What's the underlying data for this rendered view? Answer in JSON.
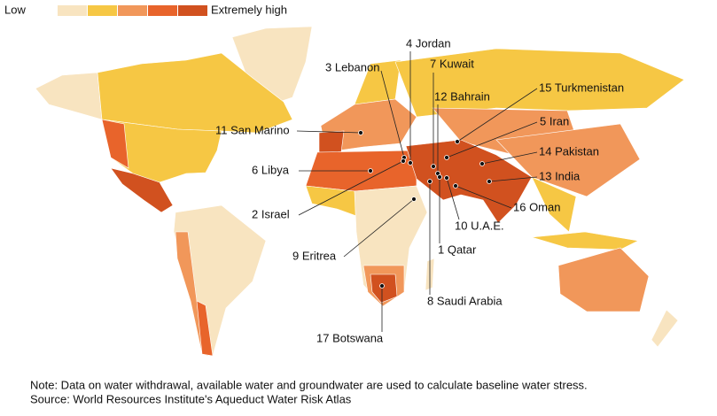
{
  "legend": {
    "low": "Low",
    "high": "Extremely high",
    "colors": [
      "#f8e4c0",
      "#f6c744",
      "#f1975a",
      "#e8642b",
      "#d1511f"
    ]
  },
  "labels": [
    "4 Jordan",
    "3 Lebanon",
    "7 Kuwait",
    "12 Bahrain",
    "15 Turkmenistan",
    "11 San Marino",
    "5 Iran",
    "14 Pakistan",
    "6 Libya",
    "13 India",
    "2 Israel",
    "16 Oman",
    "10 U.A.E.",
    "9 Eritrea",
    "1 Qatar",
    "8 Saudi Arabia",
    "17 Botswana"
  ],
  "note": "Note: Data on water withdrawal, available water and groundwater are used to calculate baseline water stress.",
  "source": "Source: World Resources Institute's Aqueduct Water Risk Atlas"
}
